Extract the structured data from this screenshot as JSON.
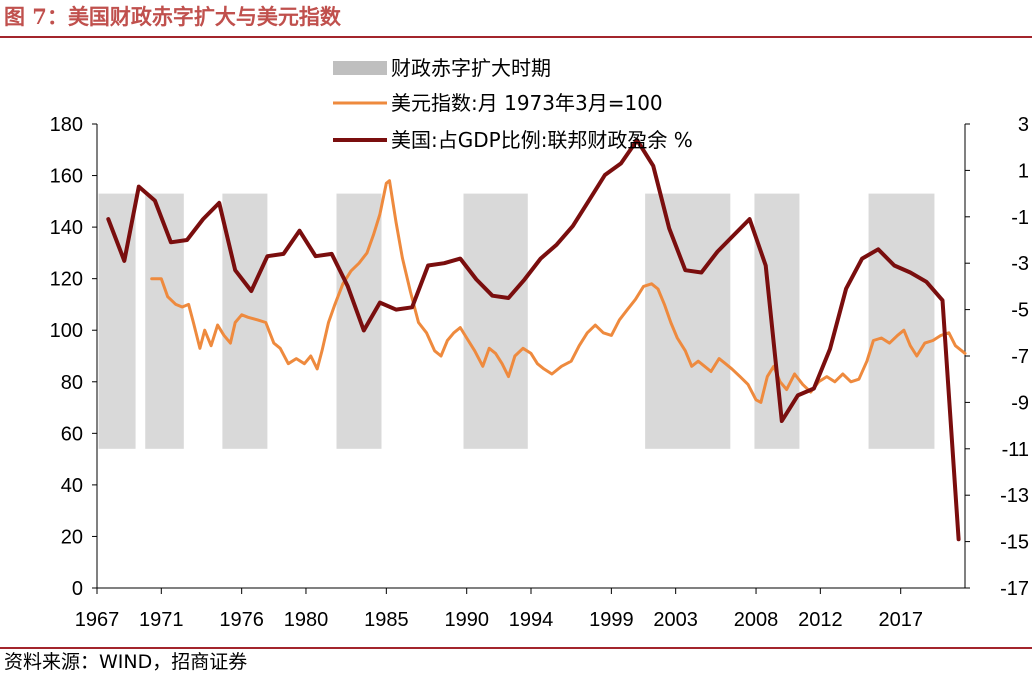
{
  "figure": {
    "title_label": "图 7",
    "title_sep": "：",
    "title_text": "美国财政赤字扩大与美元指数",
    "source": "资料来源：WIND，招商证券"
  },
  "colors": {
    "accent": "#c0504d",
    "rule": "#a3252c",
    "shade": "#d9d9d9",
    "legend_shade": "#bfbfbf",
    "usd": "#ee8a3e",
    "surplus": "#7a0e0e"
  },
  "chart_data": {
    "type": "line",
    "title": "美国财政赤字扩大与美元指数",
    "x_range": [
      1967,
      2021
    ],
    "x_ticks": [
      {
        "value": 1967,
        "label": "1967"
      },
      {
        "value": 1971,
        "label": "1971"
      },
      {
        "value": 1976,
        "label": "1976"
      },
      {
        "value": 1980,
        "label": "1980"
      },
      {
        "value": 1985,
        "label": "1985"
      },
      {
        "value": 1990,
        "label": "1990"
      },
      {
        "value": 1994,
        "label": "1994"
      },
      {
        "value": 1999,
        "label": "1999"
      },
      {
        "value": 2003,
        "label": "2003"
      },
      {
        "value": 2008,
        "label": "2008"
      },
      {
        "value": 2012,
        "label": "2012"
      },
      {
        "value": 2017,
        "label": "2017"
      }
    ],
    "y_left": {
      "range": [
        0,
        180
      ],
      "ticks": [
        "0",
        "20",
        "40",
        "60",
        "80",
        "100",
        "120",
        "140",
        "160",
        "180"
      ]
    },
    "y_right": {
      "range": [
        -17,
        3
      ],
      "ticks": [
        "-17",
        "-15",
        "-13",
        "-11",
        "-9",
        "-7",
        "-5",
        "-3",
        "-1",
        "1",
        "3"
      ]
    },
    "legend_position": "top-center",
    "legend": [
      {
        "key": "periods",
        "label": "财政赤字扩大时期"
      },
      {
        "key": "usd",
        "label": "美元指数:月 1973年3月=100"
      },
      {
        "key": "surplus",
        "label": "美国:占GDP比例:联邦财政盈余 %"
      }
    ],
    "shaded_periods": {
      "label": "财政赤字扩大时期",
      "y_range": [
        54,
        153
      ],
      "ranges": [
        [
          1967.1,
          1969.4
        ],
        [
          1970.0,
          1972.4
        ],
        [
          1974.8,
          1977.6
        ],
        [
          1981.9,
          1984.7
        ],
        [
          1989.8,
          1993.8
        ],
        [
          2001.1,
          2006.4
        ],
        [
          2007.9,
          2010.7
        ],
        [
          2015.0,
          2019.1
        ]
      ]
    },
    "series": [
      {
        "key": "usd",
        "name": "美元指数:月 1973年3月=100",
        "axis": "left",
        "points": [
          [
            1970.4,
            120
          ],
          [
            1971.0,
            120
          ],
          [
            1971.4,
            113
          ],
          [
            1971.9,
            110
          ],
          [
            1972.3,
            109
          ],
          [
            1972.7,
            110
          ],
          [
            1973.0,
            103
          ],
          [
            1973.4,
            93
          ],
          [
            1973.7,
            100
          ],
          [
            1974.1,
            94
          ],
          [
            1974.5,
            102
          ],
          [
            1974.9,
            98
          ],
          [
            1975.3,
            95
          ],
          [
            1975.6,
            103
          ],
          [
            1976.0,
            106
          ],
          [
            1976.4,
            105
          ],
          [
            1977.0,
            104
          ],
          [
            1977.5,
            103
          ],
          [
            1978.0,
            95
          ],
          [
            1978.4,
            93
          ],
          [
            1978.9,
            87
          ],
          [
            1979.4,
            89
          ],
          [
            1979.9,
            87
          ],
          [
            1980.3,
            90
          ],
          [
            1980.7,
            85
          ],
          [
            1981.0,
            92
          ],
          [
            1981.4,
            103
          ],
          [
            1981.8,
            110
          ],
          [
            1982.3,
            118
          ],
          [
            1982.8,
            123
          ],
          [
            1983.3,
            126
          ],
          [
            1983.8,
            130
          ],
          [
            1984.2,
            137
          ],
          [
            1984.6,
            145
          ],
          [
            1985.0,
            157
          ],
          [
            1985.2,
            158
          ],
          [
            1985.6,
            142
          ],
          [
            1986.0,
            128
          ],
          [
            1986.5,
            115
          ],
          [
            1987.0,
            103
          ],
          [
            1987.5,
            99
          ],
          [
            1988.0,
            92
          ],
          [
            1988.4,
            90
          ],
          [
            1988.8,
            96
          ],
          [
            1989.2,
            99
          ],
          [
            1989.6,
            101
          ],
          [
            1990.0,
            97
          ],
          [
            1990.5,
            92
          ],
          [
            1991.0,
            86
          ],
          [
            1991.4,
            93
          ],
          [
            1991.8,
            91
          ],
          [
            1992.2,
            87
          ],
          [
            1992.6,
            82
          ],
          [
            1993.0,
            90
          ],
          [
            1993.5,
            93
          ],
          [
            1994.0,
            91
          ],
          [
            1994.4,
            87
          ],
          [
            1994.8,
            85
          ],
          [
            1995.3,
            83
          ],
          [
            1995.9,
            86
          ],
          [
            1996.5,
            88
          ],
          [
            1997.0,
            94
          ],
          [
            1997.5,
            99
          ],
          [
            1998.0,
            102
          ],
          [
            1998.5,
            99
          ],
          [
            1999.0,
            98
          ],
          [
            1999.5,
            104
          ],
          [
            2000.0,
            108
          ],
          [
            2000.5,
            112
          ],
          [
            2001.0,
            117
          ],
          [
            2001.5,
            118
          ],
          [
            2001.9,
            116
          ],
          [
            2002.3,
            110
          ],
          [
            2002.7,
            103
          ],
          [
            2003.1,
            97
          ],
          [
            2003.6,
            92
          ],
          [
            2004.0,
            86
          ],
          [
            2004.4,
            88
          ],
          [
            2004.8,
            86
          ],
          [
            2005.2,
            84
          ],
          [
            2005.7,
            89
          ],
          [
            2006.1,
            87
          ],
          [
            2006.5,
            85
          ],
          [
            2007.0,
            82
          ],
          [
            2007.5,
            79
          ],
          [
            2008.0,
            73
          ],
          [
            2008.3,
            72
          ],
          [
            2008.7,
            82
          ],
          [
            2009.1,
            86
          ],
          [
            2009.5,
            80
          ],
          [
            2009.9,
            77
          ],
          [
            2010.4,
            83
          ],
          [
            2010.9,
            79
          ],
          [
            2011.4,
            76
          ],
          [
            2011.9,
            80
          ],
          [
            2012.4,
            82
          ],
          [
            2012.9,
            80
          ],
          [
            2013.4,
            83
          ],
          [
            2013.9,
            80
          ],
          [
            2014.4,
            81
          ],
          [
            2014.9,
            88
          ],
          [
            2015.3,
            96
          ],
          [
            2015.8,
            97
          ],
          [
            2016.3,
            95
          ],
          [
            2016.8,
            98
          ],
          [
            2017.2,
            100
          ],
          [
            2017.6,
            94
          ],
          [
            2018.0,
            90
          ],
          [
            2018.5,
            95
          ],
          [
            2019.0,
            96
          ],
          [
            2019.5,
            98
          ],
          [
            2020.0,
            99
          ],
          [
            2020.4,
            94
          ],
          [
            2020.8,
            92
          ],
          [
            2021.0,
            91
          ]
        ]
      },
      {
        "key": "surplus",
        "name": "美国:占GDP比例:联邦财政盈余 %",
        "axis": "right",
        "points": [
          [
            1967.7,
            -1.1
          ],
          [
            1968.7,
            -2.9
          ],
          [
            1969.6,
            0.3
          ],
          [
            1970.6,
            -0.3
          ],
          [
            1971.6,
            -2.1
          ],
          [
            1972.6,
            -2.0
          ],
          [
            1973.6,
            -1.1
          ],
          [
            1974.6,
            -0.4
          ],
          [
            1975.6,
            -3.3
          ],
          [
            1976.6,
            -4.2
          ],
          [
            1977.6,
            -2.7
          ],
          [
            1978.6,
            -2.6
          ],
          [
            1979.6,
            -1.6
          ],
          [
            1980.6,
            -2.7
          ],
          [
            1981.6,
            -2.6
          ],
          [
            1982.6,
            -4.0
          ],
          [
            1983.6,
            -5.9
          ],
          [
            1984.6,
            -4.7
          ],
          [
            1985.6,
            -5.0
          ],
          [
            1986.6,
            -4.9
          ],
          [
            1987.6,
            -3.1
          ],
          [
            1988.6,
            -3.0
          ],
          [
            1989.6,
            -2.8
          ],
          [
            1990.6,
            -3.7
          ],
          [
            1991.6,
            -4.4
          ],
          [
            1992.6,
            -4.5
          ],
          [
            1993.6,
            -3.7
          ],
          [
            1994.6,
            -2.8
          ],
          [
            1995.6,
            -2.2
          ],
          [
            1996.6,
            -1.4
          ],
          [
            1997.6,
            -0.3
          ],
          [
            1998.6,
            0.8
          ],
          [
            1999.6,
            1.3
          ],
          [
            2000.6,
            2.3
          ],
          [
            2001.6,
            1.2
          ],
          [
            2002.6,
            -1.5
          ],
          [
            2003.6,
            -3.3
          ],
          [
            2004.6,
            -3.4
          ],
          [
            2005.6,
            -2.5
          ],
          [
            2006.6,
            -1.8
          ],
          [
            2007.6,
            -1.1
          ],
          [
            2008.6,
            -3.1
          ],
          [
            2009.6,
            -9.8
          ],
          [
            2010.6,
            -8.7
          ],
          [
            2011.6,
            -8.4
          ],
          [
            2012.6,
            -6.7
          ],
          [
            2013.6,
            -4.1
          ],
          [
            2014.6,
            -2.8
          ],
          [
            2015.6,
            -2.4
          ],
          [
            2016.6,
            -3.1
          ],
          [
            2017.6,
            -3.4
          ],
          [
            2018.6,
            -3.8
          ],
          [
            2019.6,
            -4.6
          ],
          [
            2020.6,
            -14.9
          ]
        ]
      }
    ]
  }
}
